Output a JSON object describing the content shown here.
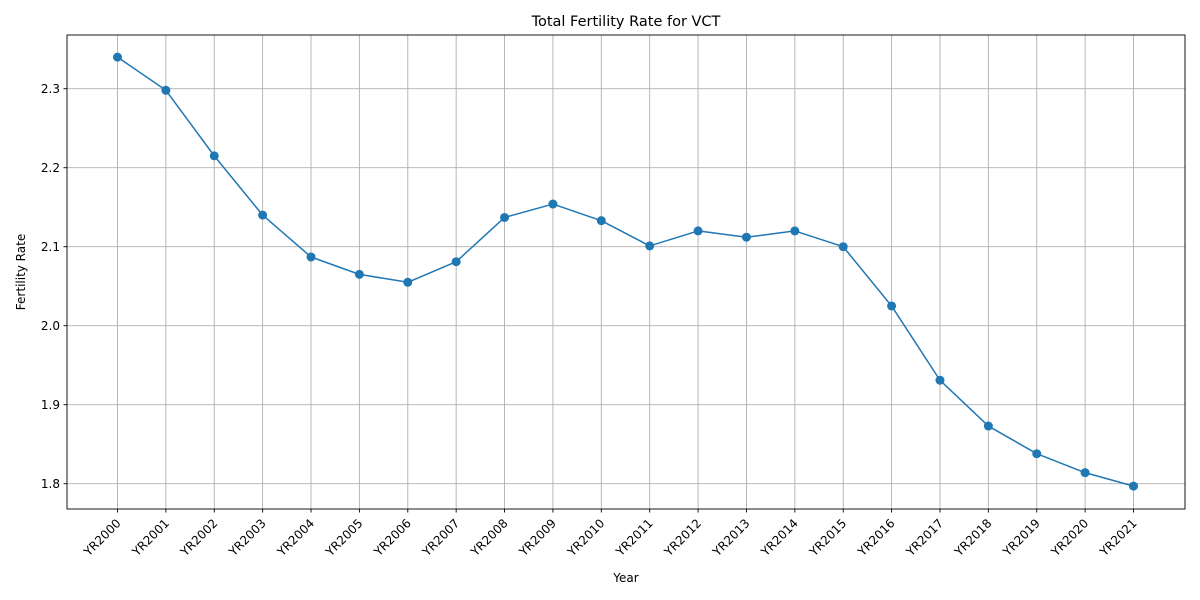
{
  "chart_data": {
    "type": "line",
    "title": "Total Fertility Rate for VCT",
    "xlabel": "Year",
    "ylabel": "Fertility Rate",
    "categories": [
      "YR2000",
      "YR2001",
      "YR2002",
      "YR2003",
      "YR2004",
      "YR2005",
      "YR2006",
      "YR2007",
      "YR2008",
      "YR2009",
      "YR2010",
      "YR2011",
      "YR2012",
      "YR2013",
      "YR2014",
      "YR2015",
      "YR2016",
      "YR2017",
      "YR2018",
      "YR2019",
      "YR2020",
      "YR2021"
    ],
    "series": [
      {
        "values": [
          2.34,
          2.298,
          2.215,
          2.14,
          2.087,
          2.065,
          2.055,
          2.081,
          2.137,
          2.154,
          2.133,
          2.101,
          2.12,
          2.112,
          2.12,
          2.1,
          2.025,
          1.931,
          1.873,
          1.838,
          1.814,
          1.797
        ],
        "color": "#1f77b4",
        "marker": "circle"
      }
    ],
    "ylim": [
      1.768,
      2.368
    ],
    "yticks": [
      "1.8",
      "1.9",
      "2.0",
      "2.1",
      "2.2",
      "2.3"
    ],
    "x_tick_rotation": 45,
    "grid": true,
    "legend": "none"
  }
}
